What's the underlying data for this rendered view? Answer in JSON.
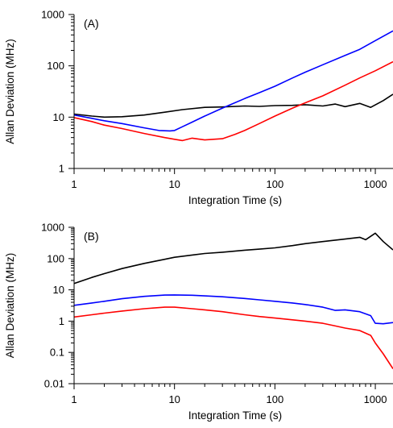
{
  "chart_data": [
    {
      "type": "line",
      "panel_label": "(A)",
      "xlabel": "Integration Time (s)",
      "ylabel": "Allan Deviation (MHz)",
      "xscale": "log",
      "yscale": "log",
      "xlim": [
        1,
        1500
      ],
      "ylim": [
        1,
        1000
      ],
      "xticks": [
        {
          "v": 1,
          "label": "1"
        },
        {
          "v": 10,
          "label": "10"
        },
        {
          "v": 100,
          "label": "100"
        },
        {
          "v": 1000,
          "label": "1000"
        }
      ],
      "yticks": [
        {
          "v": 1,
          "label": "1"
        },
        {
          "v": 10,
          "label": "10"
        },
        {
          "v": 100,
          "label": "100"
        },
        {
          "v": 1000,
          "label": "1000"
        }
      ],
      "grid": false,
      "legend": "none",
      "series": [
        {
          "color": "#000000",
          "x": [
            1,
            1.5,
            2,
            3,
            5,
            8,
            12,
            20,
            30,
            50,
            70,
            100,
            150,
            200,
            300,
            400,
            500,
            700,
            900,
            1200,
            1500
          ],
          "y": [
            11.5,
            10.5,
            10,
            10.2,
            11,
            12.5,
            14,
            15.5,
            15.8,
            16.5,
            16.2,
            16.8,
            17,
            17.5,
            16.5,
            18,
            16,
            18.5,
            15.5,
            21,
            28
          ]
        },
        {
          "color": "#0000ff",
          "x": [
            1,
            1.5,
            2,
            3,
            5,
            7,
            9,
            10,
            12,
            15,
            20,
            30,
            50,
            70,
            100,
            150,
            200,
            300,
            500,
            700,
            1000,
            1500
          ],
          "y": [
            11,
            9.5,
            8.5,
            7.5,
            6.2,
            5.5,
            5.4,
            5.5,
            6.5,
            8,
            10.5,
            15,
            23,
            30,
            40,
            58,
            75,
            105,
            160,
            210,
            310,
            480
          ]
        },
        {
          "color": "#ff0000",
          "x": [
            1,
            1.5,
            2,
            3,
            5,
            8,
            10,
            12,
            15,
            20,
            30,
            40,
            50,
            70,
            100,
            150,
            200,
            300,
            500,
            700,
            1000,
            1500
          ],
          "y": [
            9.8,
            8.2,
            7,
            6,
            4.8,
            4,
            3.7,
            3.5,
            3.9,
            3.6,
            3.8,
            4.6,
            5.5,
            7.5,
            10.5,
            15,
            19,
            26,
            42,
            58,
            80,
            120
          ]
        }
      ]
    },
    {
      "type": "line",
      "panel_label": "(B)",
      "xlabel": "Integration Time (s)",
      "ylabel": "Allan Deviation (MHz)",
      "xscale": "log",
      "yscale": "log",
      "xlim": [
        1,
        1500
      ],
      "ylim": [
        0.01,
        1000
      ],
      "xticks": [
        {
          "v": 1,
          "label": "1"
        },
        {
          "v": 10,
          "label": "10"
        },
        {
          "v": 100,
          "label": "100"
        },
        {
          "v": 1000,
          "label": "1000"
        }
      ],
      "yticks": [
        {
          "v": 0.01,
          "label": "0.01"
        },
        {
          "v": 0.1,
          "label": "0.1"
        },
        {
          "v": 1,
          "label": "1"
        },
        {
          "v": 10,
          "label": "10"
        },
        {
          "v": 100,
          "label": "100"
        },
        {
          "v": 1000,
          "label": "1000"
        }
      ],
      "grid": false,
      "legend": "none",
      "series": [
        {
          "color": "#000000",
          "x": [
            1,
            1.5,
            2,
            3,
            5,
            8,
            10,
            15,
            20,
            30,
            50,
            70,
            100,
            150,
            200,
            300,
            500,
            700,
            800,
            1000,
            1200,
            1500
          ],
          "y": [
            16,
            25,
            33,
            48,
            70,
            95,
            110,
            130,
            145,
            160,
            185,
            200,
            220,
            260,
            300,
            350,
            420,
            480,
            400,
            650,
            350,
            190
          ]
        },
        {
          "color": "#0000ff",
          "x": [
            1,
            1.5,
            2,
            3,
            5,
            8,
            10,
            15,
            20,
            30,
            50,
            70,
            100,
            150,
            200,
            300,
            400,
            500,
            700,
            900,
            1000,
            1200,
            1500
          ],
          "y": [
            3.2,
            3.8,
            4.3,
            5.2,
            6.2,
            6.8,
            6.9,
            6.7,
            6.4,
            6.0,
            5.3,
            4.8,
            4.3,
            3.8,
            3.4,
            2.8,
            2.2,
            2.3,
            2.0,
            1.5,
            0.85,
            0.82,
            0.9
          ]
        },
        {
          "color": "#ff0000",
          "x": [
            1,
            1.5,
            2,
            3,
            5,
            8,
            10,
            15,
            20,
            30,
            50,
            70,
            100,
            150,
            200,
            300,
            400,
            500,
            700,
            900,
            1000,
            1200,
            1500
          ],
          "y": [
            1.35,
            1.6,
            1.8,
            2.1,
            2.5,
            2.8,
            2.8,
            2.5,
            2.3,
            2.0,
            1.6,
            1.4,
            1.25,
            1.1,
            1.0,
            0.85,
            0.7,
            0.6,
            0.5,
            0.35,
            0.2,
            0.09,
            0.03
          ]
        }
      ]
    }
  ]
}
